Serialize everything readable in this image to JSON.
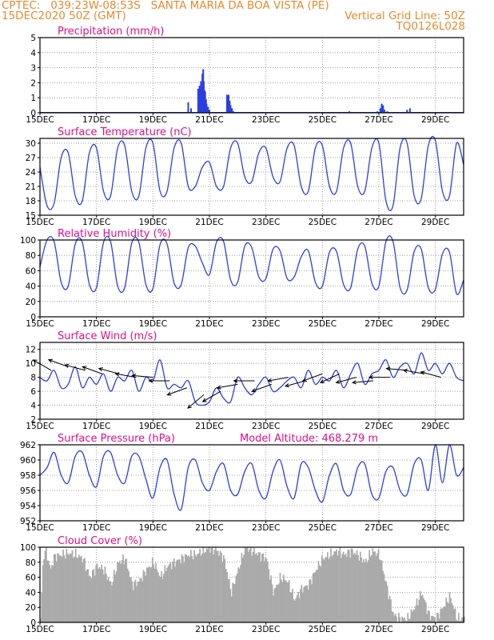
{
  "header": {
    "source": "CPTEC:",
    "coords": "039:23W-08:53S",
    "location": "SANTA MARIA DA BOA VISTA (PE)",
    "run": "15DEC2020 50Z (GMT)",
    "grid_note": "Vertical Grid Line: 50Z",
    "code": "TQ0126L028",
    "color": "#e8892f"
  },
  "colors": {
    "series": "#2b3fe0",
    "cloud": "#aaaaaa",
    "title": "#e0108a",
    "grid": "#888888",
    "arrow": "#000000"
  },
  "x_ticks": [
    "15DEC",
    "17DEC",
    "19DEC",
    "21DEC",
    "23DEC",
    "25DEC",
    "27DEC",
    "29DEC"
  ],
  "x_tick_days": [
    0,
    2,
    4,
    6,
    8,
    10,
    12,
    14
  ],
  "x_range_days": [
    0,
    15
  ],
  "panel_titles": {
    "precip": "Precipitation (mm/h)",
    "temp": "Surface Temperature (nC)",
    "rh": "Relative Humidity (%)",
    "wind": "Surface Wind (m/s)",
    "pres": "Surface Pressure (hPa)",
    "pres_extra": "Model Altitude: 468.279 m",
    "cloud": "Cloud Cover (%)"
  },
  "chart_data": [
    {
      "id": "precip",
      "type": "bar",
      "title": "Precipitation (mm/h)",
      "ylim": [
        0,
        5
      ],
      "yticks": [
        0,
        1,
        2,
        3,
        4,
        5
      ],
      "x_unit": "days since 15DEC2020 00Z",
      "x": [
        5.25,
        5.35,
        5.6,
        5.65,
        5.7,
        5.72,
        5.75,
        5.78,
        5.8,
        5.83,
        5.85,
        5.88,
        5.9,
        5.95,
        6.0,
        6.62,
        6.65,
        6.68,
        6.72,
        6.75,
        6.8,
        6.85,
        10.95,
        11.95,
        12.05,
        12.1,
        12.15,
        12.2,
        12.3,
        13.0,
        13.1
      ],
      "values": [
        0.7,
        0.3,
        1.6,
        1.8,
        2.1,
        1.4,
        2.6,
        2.9,
        2.1,
        1.5,
        1.4,
        0.9,
        0.6,
        0.4,
        0.2,
        1.2,
        1.1,
        1.2,
        0.8,
        0.5,
        0.3,
        0.1,
        0.1,
        0.1,
        0.3,
        0.6,
        0.5,
        0.2,
        0.1,
        0.2,
        0.3
      ]
    },
    {
      "id": "temp",
      "type": "line",
      "title": "Surface Temperature (nC)",
      "ylim": [
        15,
        31
      ],
      "yticks": [
        15,
        18,
        21,
        24,
        27,
        30
      ],
      "x": [
        0,
        0.25,
        0.5,
        0.75,
        1,
        1.25,
        1.5,
        1.75,
        2,
        2.25,
        2.5,
        2.75,
        3,
        3.25,
        3.5,
        3.75,
        4,
        4.25,
        4.5,
        4.75,
        5,
        5.25,
        5.5,
        5.75,
        6,
        6.25,
        6.5,
        6.75,
        7,
        7.25,
        7.5,
        7.75,
        8,
        8.25,
        8.5,
        8.75,
        9,
        9.25,
        9.5,
        9.75,
        10,
        10.25,
        10.5,
        10.75,
        11,
        11.25,
        11.5,
        11.75,
        12,
        12.25,
        12.5,
        12.75,
        13,
        13.25,
        13.5,
        13.75,
        14,
        14.25,
        14.5,
        14.75,
        15
      ],
      "values": [
        25,
        17,
        17.5,
        27,
        28,
        19,
        18,
        28,
        29,
        20,
        19,
        29,
        29.5,
        20,
        19,
        29,
        30,
        20,
        20,
        29,
        30,
        21,
        21,
        25,
        26,
        21,
        21,
        29,
        30,
        23,
        22,
        28,
        29,
        23,
        22,
        29,
        29.5,
        21,
        20,
        29,
        29.5,
        21,
        20,
        29,
        30,
        21,
        20,
        29,
        30,
        18,
        17,
        29,
        30,
        19,
        18.5,
        29.5,
        30.5,
        20,
        19,
        30,
        25.5
      ]
    },
    {
      "id": "rh",
      "type": "line",
      "title": "Relative Humidity (%)",
      "ylim": [
        0,
        100
      ],
      "yticks": [
        0,
        20,
        40,
        60,
        80,
        100
      ],
      "x": [
        0,
        0.25,
        0.5,
        0.75,
        1,
        1.25,
        1.5,
        1.75,
        2,
        2.25,
        2.5,
        2.75,
        3,
        3.25,
        3.5,
        3.75,
        4,
        4.25,
        4.5,
        4.75,
        5,
        5.25,
        5.5,
        5.75,
        6,
        6.25,
        6.5,
        6.75,
        7,
        7.25,
        7.5,
        7.75,
        8,
        8.25,
        8.5,
        8.75,
        9,
        9.25,
        9.5,
        9.75,
        10,
        10.25,
        10.5,
        10.75,
        11,
        11.25,
        11.5,
        11.75,
        12,
        12.25,
        12.5,
        12.75,
        13,
        13.25,
        13.5,
        13.75,
        14,
        14.25,
        14.5,
        14.75,
        15
      ],
      "values": [
        65,
        100,
        98,
        45,
        40,
        95,
        97,
        42,
        38,
        97,
        98,
        40,
        38,
        96,
        97,
        42,
        37,
        94,
        95,
        44,
        42,
        90,
        92,
        70,
        55,
        97,
        98,
        48,
        45,
        92,
        90,
        52,
        50,
        88,
        86,
        50,
        52,
        78,
        86,
        45,
        40,
        84,
        85,
        42,
        38,
        88,
        92,
        44,
        40,
        98,
        98,
        38,
        35,
        85,
        88,
        38,
        36,
        82,
        84,
        30,
        48
      ]
    },
    {
      "id": "wind",
      "type": "line",
      "title": "Surface Wind (m/s)",
      "ylim": [
        2,
        13
      ],
      "yticks": [
        2,
        4,
        6,
        8,
        10,
        12
      ],
      "x": [
        0,
        0.25,
        0.5,
        0.75,
        1,
        1.25,
        1.5,
        1.75,
        2,
        2.25,
        2.5,
        2.75,
        3,
        3.25,
        3.5,
        3.75,
        4,
        4.25,
        4.5,
        4.75,
        5,
        5.25,
        5.5,
        5.75,
        6,
        6.25,
        6.5,
        6.75,
        7,
        7.25,
        7.5,
        7.75,
        8,
        8.25,
        8.5,
        8.75,
        9,
        9.25,
        9.5,
        9.75,
        10,
        10.25,
        10.5,
        10.75,
        11,
        11.25,
        11.5,
        11.75,
        12,
        12.25,
        12.5,
        12.75,
        13,
        13.25,
        13.5,
        13.75,
        14,
        14.25,
        14.5,
        14.75,
        15
      ],
      "values": [
        8,
        7.5,
        9,
        6.5,
        7,
        9.5,
        6.5,
        8,
        7,
        8.5,
        6,
        8,
        7.5,
        9,
        6,
        8,
        7.5,
        10.5,
        6.5,
        7,
        6.5,
        7.5,
        4.5,
        4,
        4.5,
        6.5,
        5,
        4.5,
        8,
        6.5,
        5.5,
        7,
        8,
        6,
        6.5,
        7.5,
        8,
        6.5,
        9,
        7,
        8,
        7.5,
        9,
        6.5,
        8.5,
        10,
        7,
        8.5,
        9,
        10.5,
        8,
        9.5,
        10,
        8.5,
        11.5,
        9,
        10,
        8.5,
        10,
        8,
        7.5
      ],
      "arrow_x": [
        0.4,
        1.0,
        1.6,
        2.2,
        2.8,
        3.4,
        4.0,
        4.6,
        5.2,
        5.8,
        6.4,
        7.0,
        7.6,
        8.2,
        8.8,
        9.4,
        10.0,
        10.6,
        11.2,
        11.8,
        12.4,
        13.0,
        13.6,
        14.2
      ],
      "arrow_speed": [
        9,
        9.5,
        9,
        8.5,
        8.5,
        8,
        8,
        7.5,
        6.5,
        5.5,
        6,
        7,
        7.5,
        7,
        8,
        7.5,
        8.5,
        8.5,
        8,
        7.5,
        8,
        9,
        8.5,
        8
      ],
      "arrow_dir_deg": [
        150,
        160,
        165,
        160,
        165,
        170,
        175,
        180,
        200,
        220,
        210,
        190,
        180,
        200,
        190,
        195,
        200,
        205,
        195,
        185,
        180,
        175,
        170,
        165
      ]
    },
    {
      "id": "pres",
      "type": "line",
      "title": "Surface Pressure (hPa)",
      "ylim": [
        952,
        962
      ],
      "yticks": [
        952,
        954,
        956,
        958,
        960,
        962
      ],
      "x": [
        0,
        0.25,
        0.5,
        0.75,
        1,
        1.25,
        1.5,
        1.75,
        2,
        2.25,
        2.5,
        2.75,
        3,
        3.25,
        3.5,
        3.75,
        4,
        4.25,
        4.5,
        4.75,
        5,
        5.25,
        5.5,
        5.75,
        6,
        6.25,
        6.5,
        6.75,
        7,
        7.25,
        7.5,
        7.75,
        8,
        8.25,
        8.5,
        8.75,
        9,
        9.25,
        9.5,
        9.75,
        10,
        10.25,
        10.5,
        10.75,
        11,
        11.25,
        11.5,
        11.75,
        12,
        12.25,
        12.5,
        12.75,
        13,
        13.25,
        13.5,
        13.75,
        14,
        14.25,
        14.5,
        14.75,
        15
      ],
      "values": [
        958,
        959,
        961,
        958,
        957,
        960.5,
        961,
        958,
        956.5,
        960.5,
        961,
        958,
        957,
        960.5,
        960.5,
        957.5,
        955,
        959,
        960,
        955.5,
        953.5,
        959,
        960,
        957,
        956,
        958.5,
        959.5,
        956,
        955.5,
        958.5,
        959.5,
        956,
        955,
        958.5,
        960,
        956.5,
        955,
        959.5,
        959,
        956,
        954.5,
        958,
        959.5,
        956,
        955.5,
        959,
        959.5,
        955.5,
        955,
        958.5,
        959,
        956,
        955.5,
        959.5,
        960,
        956,
        962,
        957,
        962,
        958,
        959
      ]
    },
    {
      "id": "cloud",
      "type": "area",
      "title": "Cloud Cover (%)",
      "ylim": [
        0,
        100
      ],
      "yticks": [
        0,
        20,
        40,
        60,
        80,
        100
      ],
      "x": [
        0,
        0.1,
        0.2,
        0.35,
        0.5,
        0.75,
        1,
        1.25,
        1.5,
        1.75,
        2,
        2.25,
        2.5,
        2.75,
        3,
        3.25,
        3.5,
        3.75,
        4,
        4.25,
        4.5,
        4.75,
        5,
        5.25,
        5.5,
        5.75,
        6,
        6.25,
        6.5,
        6.75,
        7,
        7.25,
        7.5,
        7.75,
        8,
        8.25,
        8.5,
        8.75,
        9,
        9.25,
        9.5,
        9.75,
        10,
        10.25,
        10.5,
        10.75,
        11,
        11.25,
        11.5,
        11.75,
        12,
        12.25,
        12.5,
        12.75,
        13,
        13.25,
        13.5,
        13.75,
        14,
        14.25,
        14.5,
        14.75,
        15
      ],
      "values": [
        5,
        90,
        95,
        70,
        88,
        90,
        92,
        90,
        85,
        60,
        75,
        70,
        50,
        80,
        85,
        50,
        55,
        70,
        80,
        60,
        75,
        80,
        85,
        90,
        90,
        95,
        98,
        96,
        85,
        40,
        70,
        100,
        95,
        90,
        85,
        40,
        60,
        55,
        30,
        45,
        50,
        70,
        85,
        90,
        95,
        90,
        95,
        90,
        80,
        95,
        90,
        50,
        10,
        5,
        5,
        20,
        40,
        10,
        5,
        20,
        35,
        5,
        5
      ]
    }
  ]
}
